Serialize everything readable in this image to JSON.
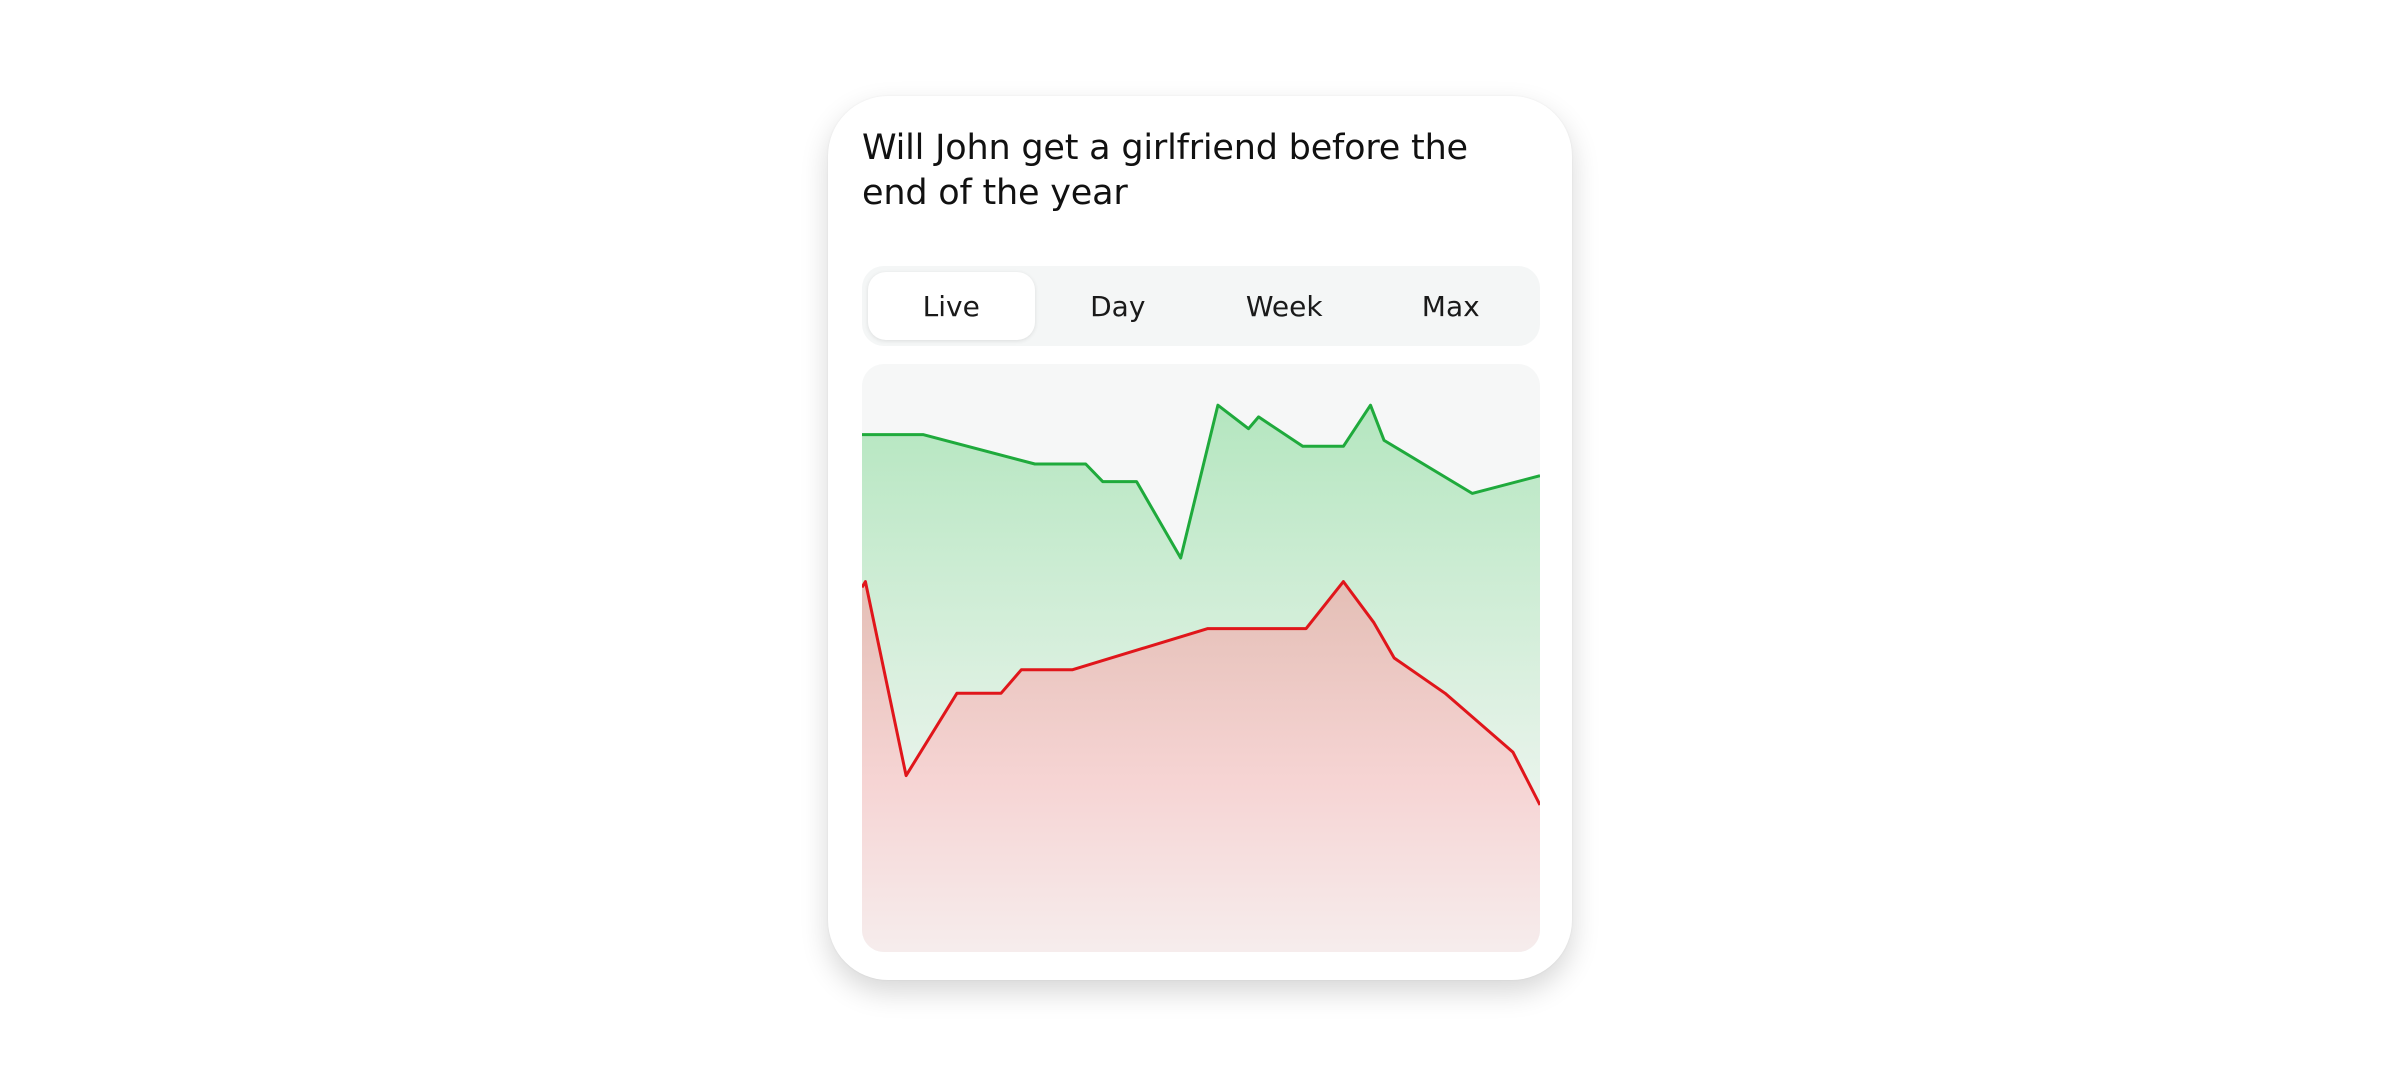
{
  "market": {
    "title": "Will John get a girlfriend before the end of the year"
  },
  "tabs": [
    {
      "label": "Live",
      "active": true
    },
    {
      "label": "Day",
      "active": false
    },
    {
      "label": "Week",
      "active": false
    },
    {
      "label": "Max",
      "active": false
    }
  ],
  "colors": {
    "yes_line": "#1faa3c",
    "no_line": "#e0161b"
  },
  "chart_data": {
    "type": "area",
    "ylim": [
      0,
      100
    ],
    "grid": false,
    "legend": "none",
    "x": [
      0,
      6,
      9,
      14,
      17,
      24,
      25.5,
      31,
      35,
      40.5,
      47,
      52.5,
      57.5,
      59,
      61,
      65,
      71,
      75,
      77,
      78.5,
      90,
      100
    ],
    "series": [
      {
        "color": "#1faa3c",
        "x": [
          0,
          9,
          25.5,
          33,
          35.5,
          40.5,
          47,
          52.5,
          57,
          58.5,
          65,
          71,
          75,
          77,
          90,
          100
        ],
        "values": [
          88,
          88,
          83,
          83,
          80,
          80,
          67,
          93,
          89,
          91,
          86,
          86,
          93,
          87,
          78,
          81
        ]
      },
      {
        "color": "#e0161b",
        "x": [
          0,
          0.5,
          6.5,
          14,
          20.5,
          23.5,
          31,
          51,
          65.5,
          71,
          75.5,
          78.5,
          86,
          96,
          100
        ],
        "values": [
          62,
          63,
          30,
          44,
          44,
          48,
          48,
          55,
          55,
          63,
          56,
          50,
          44,
          34,
          25
        ]
      }
    ]
  }
}
